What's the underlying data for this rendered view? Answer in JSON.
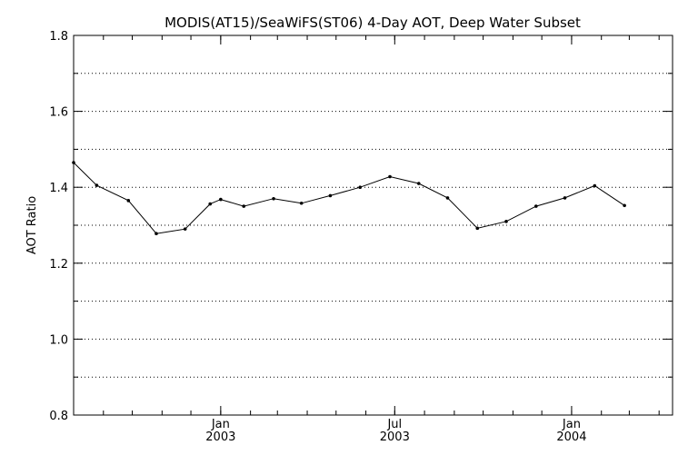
{
  "chart_data": {
    "type": "line",
    "title": "MODIS(AT15)/SeaWiFS(ST06) 4-Day AOT, Deep Water Subset",
    "xlabel": "",
    "ylabel": "AOT Ratio",
    "xlim": [
      "2002-08-01",
      "2004-04-15"
    ],
    "ylim": [
      0.8,
      1.8
    ],
    "grid": "horizontal dotted",
    "yticks": [
      "0.8",
      "1.0",
      "1.2",
      "1.4",
      "1.6",
      "1.8"
    ],
    "xticks": [
      {
        "date": "2003-01-01",
        "line1": "Jan",
        "line2": "2003"
      },
      {
        "date": "2003-07-01",
        "line1": "Jul",
        "line2": "2003"
      },
      {
        "date": "2004-01-01",
        "line1": "Jan",
        "line2": "2004"
      }
    ],
    "series": [
      {
        "color": "#000000",
        "points": [
          {
            "x": "2002-08-01",
            "y": 1.465
          },
          {
            "x": "2002-08-25",
            "y": 1.405
          },
          {
            "x": "2002-09-27",
            "y": 1.365
          },
          {
            "x": "2002-10-26",
            "y": 1.278
          },
          {
            "x": "2002-11-25",
            "y": 1.29
          },
          {
            "x": "2002-12-21",
            "y": 1.356
          },
          {
            "x": "2003-01-01",
            "y": 1.368
          },
          {
            "x": "2003-01-25",
            "y": 1.35
          },
          {
            "x": "2003-02-25",
            "y": 1.37
          },
          {
            "x": "2003-03-26",
            "y": 1.358
          },
          {
            "x": "2003-04-25",
            "y": 1.378
          },
          {
            "x": "2003-05-26",
            "y": 1.4
          },
          {
            "x": "2003-06-26",
            "y": 1.428
          },
          {
            "x": "2003-07-26",
            "y": 1.41
          },
          {
            "x": "2003-08-25",
            "y": 1.372
          },
          {
            "x": "2003-09-25",
            "y": 1.292
          },
          {
            "x": "2003-10-25",
            "y": 1.31
          },
          {
            "x": "2003-11-25",
            "y": 1.35
          },
          {
            "x": "2003-12-25",
            "y": 1.372
          },
          {
            "x": "2004-01-25",
            "y": 1.404
          },
          {
            "x": "2004-02-25",
            "y": 1.352
          }
        ]
      }
    ]
  }
}
